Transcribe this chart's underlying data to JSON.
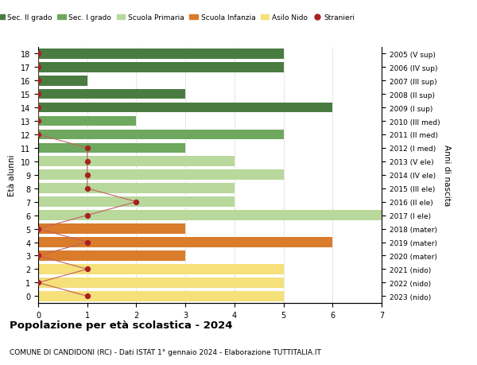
{
  "ages": [
    18,
    17,
    16,
    15,
    14,
    13,
    12,
    11,
    10,
    9,
    8,
    7,
    6,
    5,
    4,
    3,
    2,
    1,
    0
  ],
  "right_labels_by_age": {
    "18": "2005 (V sup)",
    "17": "2006 (IV sup)",
    "16": "2007 (III sup)",
    "15": "2008 (II sup)",
    "14": "2009 (I sup)",
    "13": "2010 (III med)",
    "12": "2011 (II med)",
    "11": "2012 (I med)",
    "10": "2013 (V ele)",
    "9": "2014 (IV ele)",
    "8": "2015 (III ele)",
    "7": "2016 (II ele)",
    "6": "2017 (I ele)",
    "5": "2018 (mater)",
    "4": "2019 (mater)",
    "3": "2020 (mater)",
    "2": "2021 (nido)",
    "1": "2022 (nido)",
    "0": "2023 (nido)"
  },
  "bar_values": [
    5,
    5,
    1,
    3,
    6,
    2,
    5,
    3,
    4,
    5,
    4,
    4,
    7,
    3,
    6,
    3,
    5,
    5,
    5
  ],
  "bar_colors": [
    "#4a7c42",
    "#4a7c42",
    "#4a7c42",
    "#4a7c42",
    "#4a7c42",
    "#6ea85e",
    "#6ea85e",
    "#6ea85e",
    "#b8d89c",
    "#b8d89c",
    "#b8d89c",
    "#b8d89c",
    "#b8d89c",
    "#d97c2b",
    "#d97c2b",
    "#d97c2b",
    "#f5e07a",
    "#f5e07a",
    "#f5e07a"
  ],
  "stranieri_values": [
    0,
    0,
    0,
    0,
    0,
    0,
    0,
    1,
    1,
    1,
    1,
    2,
    1,
    0,
    1,
    0,
    1,
    0,
    1
  ],
  "title": "Popolazione per età scolastica - 2024",
  "subtitle": "COMUNE DI CANDIDONI (RC) - Dati ISTAT 1° gennaio 2024 - Elaborazione TUTTITALIA.IT",
  "ylabel": "Età alunni",
  "right_ylabel": "Anni di nascita",
  "xlim": [
    0,
    7
  ],
  "xticks": [
    0,
    1,
    2,
    3,
    4,
    5,
    6,
    7
  ],
  "legend_labels": [
    "Sec. II grado",
    "Sec. I grado",
    "Scuola Primaria",
    "Scuola Infanzia",
    "Asilo Nido",
    "Stranieri"
  ],
  "legend_colors": [
    "#4a7c42",
    "#6ea85e",
    "#b8d89c",
    "#d97c2b",
    "#f5e07a",
    "#a82020"
  ],
  "bg_color": "#ffffff",
  "stranieri_color": "#a82020",
  "stranieri_line_color": "#c06060"
}
